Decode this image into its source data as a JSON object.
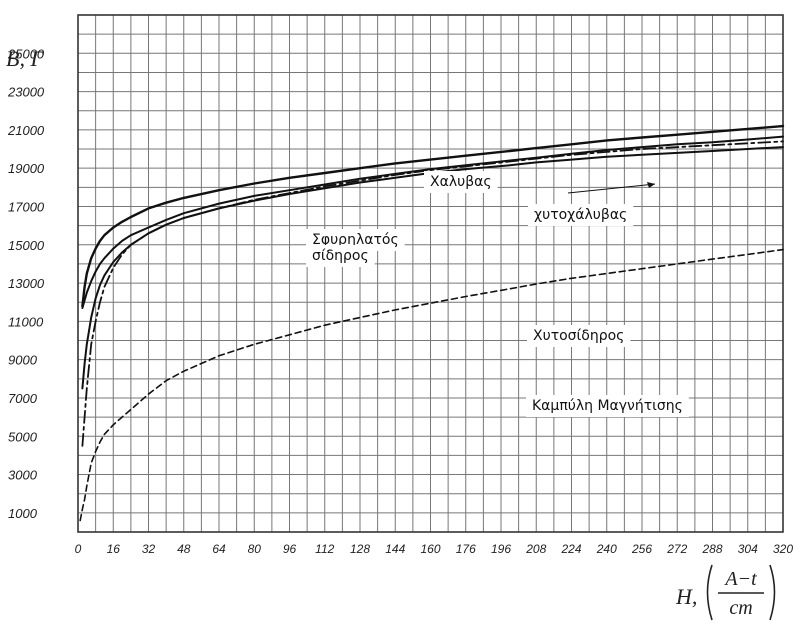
{
  "chart_data": {
    "type": "line",
    "title": "",
    "ylabel": "B, Γ",
    "xlabel": "H,",
    "xunit": {
      "numerator": "A−t",
      "denominator": "cm"
    },
    "xlim": [
      0,
      320
    ],
    "ylim": [
      0,
      27000
    ],
    "grid": true,
    "x_ticks": [
      0,
      16,
      32,
      48,
      64,
      80,
      96,
      112,
      128,
      144,
      160,
      176,
      196,
      208,
      224,
      240,
      256,
      272,
      288,
      304,
      320
    ],
    "y_ticks": [
      1000,
      3000,
      5000,
      7000,
      9000,
      11000,
      13000,
      15000,
      17000,
      19000,
      21000,
      23000,
      25000
    ],
    "annotations": [
      {
        "text": "Καμπύλη Μαγνήτισης"
      }
    ],
    "series": [
      {
        "name": "Χαλυβας",
        "style": "solid",
        "width": 2.4,
        "color": "#111111",
        "x": [
          2,
          3,
          4,
          6,
          8,
          10,
          12,
          16,
          20,
          24,
          32,
          40,
          48,
          64,
          80,
          96,
          112,
          128,
          144,
          160,
          176,
          196,
          208,
          224,
          240,
          256,
          272,
          288,
          304,
          320
        ],
        "y": [
          11800,
          12800,
          13500,
          14300,
          14800,
          15200,
          15500,
          15900,
          16200,
          16450,
          16900,
          17200,
          17450,
          17850,
          18200,
          18500,
          18750,
          19000,
          19250,
          19450,
          19650,
          19900,
          20050,
          20250,
          20450,
          20600,
          20750,
          20900,
          21050,
          21200
        ]
      },
      {
        "name": "",
        "style": "solid",
        "width": 2.0,
        "color": "#111111",
        "x": [
          2,
          3,
          4,
          6,
          8,
          10,
          12,
          16,
          20,
          24,
          32,
          40,
          48,
          64,
          80,
          96,
          112,
          128,
          144,
          160,
          176,
          196,
          208,
          224,
          240,
          256,
          272,
          288,
          304,
          320
        ],
        "y": [
          11700,
          12100,
          12500,
          13100,
          13600,
          14000,
          14300,
          14800,
          15200,
          15500,
          15900,
          16300,
          16650,
          17150,
          17550,
          17850,
          18150,
          18450,
          18700,
          18950,
          19150,
          19400,
          19550,
          19750,
          19950,
          20100,
          20250,
          20350,
          20500,
          20650
        ]
      },
      {
        "name": "Σφυρηλατός σίδηρος",
        "style": "solid",
        "width": 2.0,
        "color": "#111111",
        "x": [
          2,
          3,
          4,
          6,
          8,
          10,
          12,
          16,
          20,
          24,
          32,
          40,
          48,
          64,
          80,
          96,
          112,
          128,
          144,
          160,
          176,
          196,
          208,
          224,
          240,
          256,
          272,
          288,
          304,
          320
        ],
        "y": [
          7500,
          8800,
          9800,
          11200,
          12200,
          12900,
          13400,
          14100,
          14600,
          15000,
          15600,
          16050,
          16400,
          16900,
          17300,
          17650,
          17950,
          18250,
          18500,
          18750,
          18950,
          19150,
          19300,
          19450,
          19600,
          19700,
          19800,
          19900,
          20000,
          20100
        ]
      },
      {
        "name": "χυτοχάλυβας",
        "style": "dashdot",
        "width": 1.8,
        "color": "#111111",
        "x": [
          2,
          3,
          4,
          6,
          8,
          10,
          12,
          16,
          20,
          24,
          32,
          40,
          48,
          64,
          80,
          96,
          112,
          128,
          144,
          160,
          176,
          196,
          208,
          224,
          240,
          256,
          272,
          288,
          304,
          320
        ],
        "y": [
          4500,
          6000,
          7500,
          9800,
          11000,
          12000,
          12800,
          13800,
          14500,
          15000,
          15600,
          16050,
          16400,
          16900,
          17350,
          17700,
          18050,
          18350,
          18650,
          18900,
          19100,
          19350,
          19500,
          19700,
          19850,
          20000,
          20100,
          20200,
          20300,
          20400
        ]
      },
      {
        "name": "Χυτοσίδηρος",
        "style": "dashed",
        "width": 1.6,
        "color": "#111111",
        "x": [
          1,
          2,
          3,
          4,
          6,
          8,
          10,
          12,
          16,
          20,
          24,
          32,
          40,
          48,
          64,
          80,
          96,
          112,
          128,
          144,
          160,
          176,
          196,
          208,
          224,
          240,
          256,
          272,
          288,
          304,
          320
        ],
        "y": [
          600,
          1200,
          1700,
          2400,
          3600,
          4200,
          4700,
          5100,
          5600,
          6000,
          6400,
          7200,
          7900,
          8400,
          9200,
          9800,
          10300,
          10800,
          11200,
          11600,
          11950,
          12300,
          12700,
          12950,
          13250,
          13500,
          13750,
          14000,
          14250,
          14500,
          14750
        ]
      }
    ]
  }
}
